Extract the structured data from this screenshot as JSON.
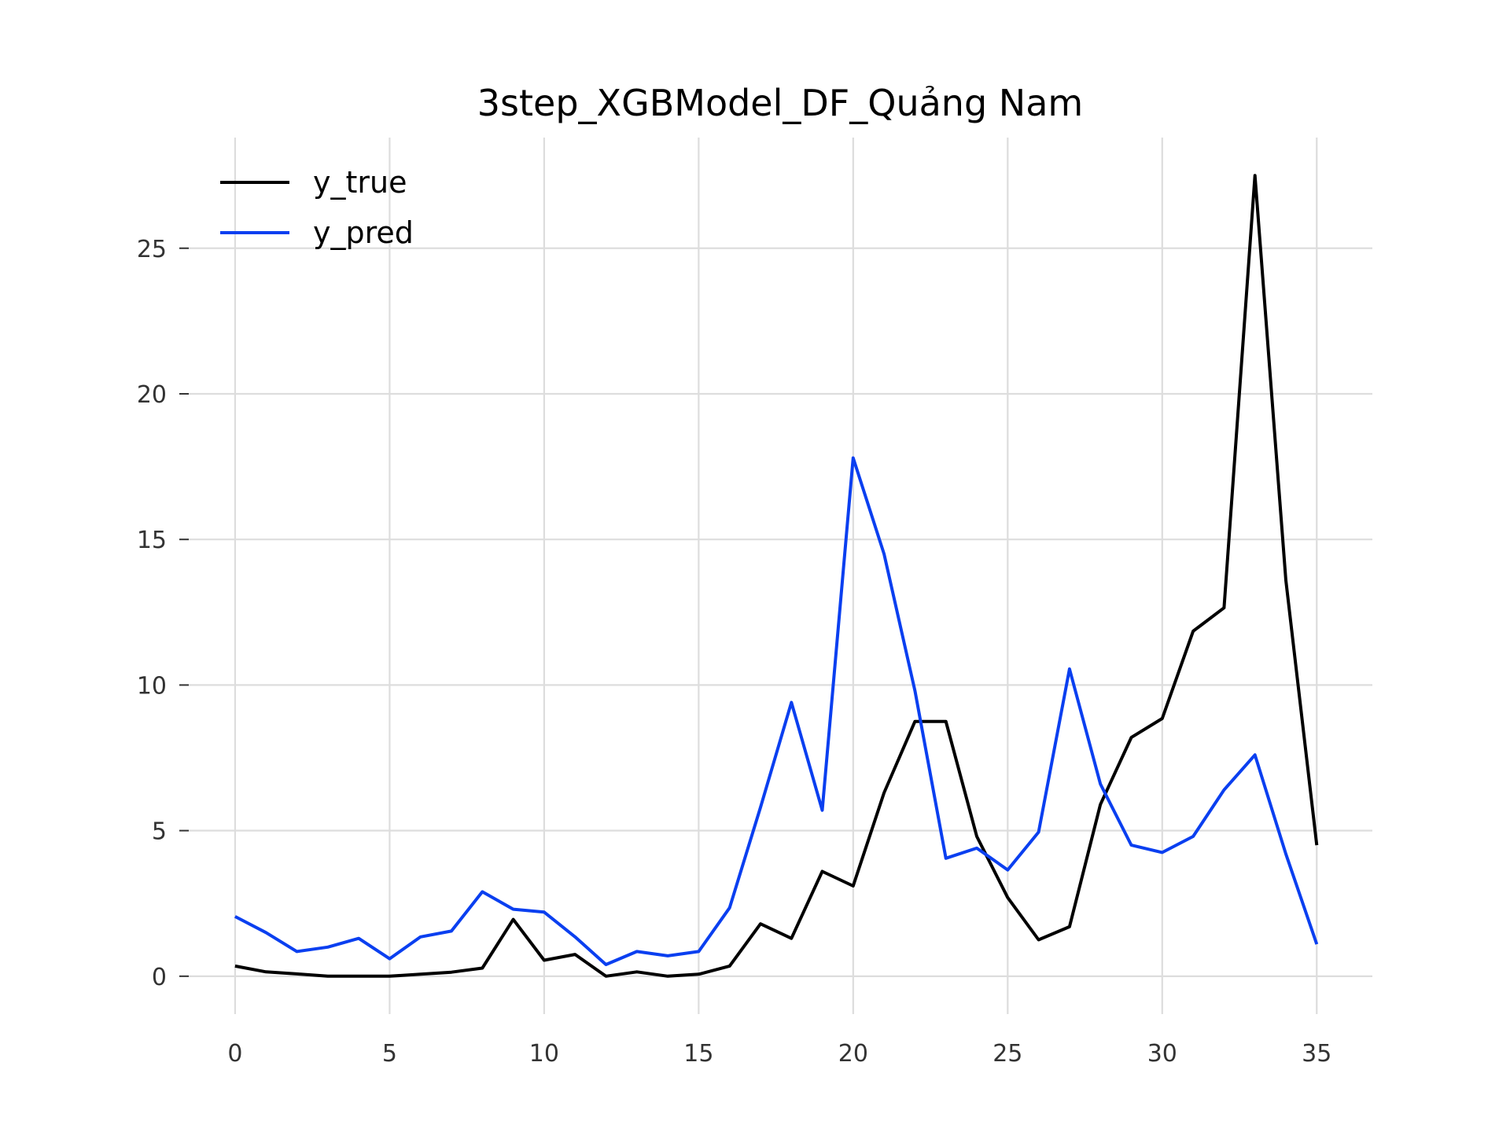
{
  "chart_data": {
    "type": "line",
    "title": "3step_XGBModel_DF_Quảng Nam",
    "xlabel": "",
    "ylabel": "",
    "x": [
      0,
      1,
      2,
      3,
      4,
      5,
      6,
      7,
      8,
      9,
      10,
      11,
      12,
      13,
      14,
      15,
      16,
      17,
      18,
      19,
      20,
      21,
      22,
      23,
      24,
      25,
      26,
      27,
      28,
      29,
      30,
      31,
      32,
      33,
      34,
      35
    ],
    "xticks": [
      0,
      5,
      10,
      15,
      20,
      25,
      30,
      35
    ],
    "yticks": [
      0,
      5,
      10,
      15,
      20,
      25
    ],
    "xlim": [
      -1.5,
      36.8
    ],
    "ylim": [
      -1.3,
      28.8
    ],
    "grid": true,
    "legend_position": "top-left",
    "series": [
      {
        "name": "y_true",
        "color": "#000000",
        "values": [
          0.35,
          0.15,
          0.08,
          0.0,
          0.0,
          0.0,
          0.07,
          0.14,
          0.28,
          1.95,
          0.55,
          0.75,
          0.0,
          0.15,
          0.0,
          0.07,
          0.35,
          1.8,
          1.3,
          3.6,
          3.1,
          6.3,
          8.75,
          8.75,
          4.8,
          2.7,
          1.25,
          1.7,
          5.9,
          8.2,
          8.85,
          11.85,
          12.65,
          27.5,
          13.6,
          4.5
        ]
      },
      {
        "name": "y_pred",
        "color": "#0a3ff0",
        "values": [
          2.05,
          1.5,
          0.85,
          1.0,
          1.3,
          0.6,
          1.35,
          1.55,
          2.9,
          2.3,
          2.2,
          1.35,
          0.4,
          0.85,
          0.7,
          0.85,
          2.35,
          5.8,
          9.4,
          5.7,
          17.8,
          14.5,
          9.8,
          4.05,
          4.4,
          3.65,
          4.95,
          10.55,
          6.6,
          4.5,
          4.25,
          4.8,
          6.4,
          7.6,
          4.2,
          1.1
        ]
      }
    ]
  }
}
